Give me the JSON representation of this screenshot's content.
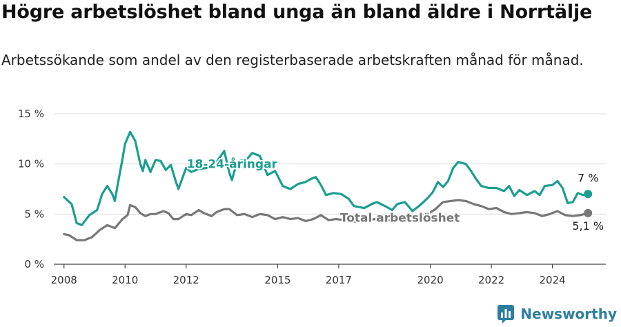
{
  "header": {
    "title": "Högre arbetslöshet bland unga än bland äldre i Norrtälje",
    "subtitle": "Arbetssökande som andel av den registerbaserade arbetskraften månad för månad."
  },
  "brand": {
    "name": "Newsworthy",
    "icon": "newsworthy-logo-icon",
    "color": "#2d7fa0"
  },
  "chart_data": {
    "type": "line",
    "title": "Högre arbetslöshet bland unga än bland äldre i Norrtälje",
    "subtitle": "Arbetssökande som andel av den registerbaserade arbetskraften månad för månad.",
    "ylim": [
      0,
      15
    ],
    "y_ticks": [
      {
        "value": 0,
        "label": "0 %"
      },
      {
        "value": 5,
        "label": "5 %"
      },
      {
        "value": 10,
        "label": "10 %"
      },
      {
        "value": 15,
        "label": "15 %"
      }
    ],
    "xlim": [
      "2007-09",
      "2025-10"
    ],
    "x_ticks": [
      {
        "value": "2008-01",
        "label": "2008"
      },
      {
        "value": "2010-01",
        "label": "2010"
      },
      {
        "value": "2012-01",
        "label": "2012"
      },
      {
        "value": "2015-01",
        "label": "2015"
      },
      {
        "value": "2017-01",
        "label": "2017"
      },
      {
        "value": "2020-01",
        "label": "2020"
      },
      {
        "value": "2022-01",
        "label": "2022"
      },
      {
        "value": "2024-01",
        "label": "2024"
      }
    ],
    "grid": true,
    "series": [
      {
        "name": "18-24-åringar",
        "color": "#1a9e8f",
        "end_label": "7 %",
        "points": [
          [
            "2008-01",
            6.7
          ],
          [
            "2008-04",
            6.0
          ],
          [
            "2008-06",
            4.1
          ],
          [
            "2008-08",
            3.9
          ],
          [
            "2008-11",
            4.9
          ],
          [
            "2009-02",
            5.4
          ],
          [
            "2009-04",
            7.0
          ],
          [
            "2009-06",
            7.8
          ],
          [
            "2009-08",
            7.0
          ],
          [
            "2009-09",
            6.3
          ],
          [
            "2009-10",
            7.8
          ],
          [
            "2009-12",
            10.5
          ],
          [
            "2010-01",
            12.0
          ],
          [
            "2010-03",
            13.2
          ],
          [
            "2010-05",
            12.3
          ],
          [
            "2010-07",
            10.0
          ],
          [
            "2010-08",
            9.3
          ],
          [
            "2010-09",
            10.4
          ],
          [
            "2010-11",
            9.2
          ],
          [
            "2011-01",
            10.4
          ],
          [
            "2011-03",
            10.3
          ],
          [
            "2011-05",
            9.4
          ],
          [
            "2011-07",
            9.9
          ],
          [
            "2011-09",
            8.2
          ],
          [
            "2011-10",
            7.5
          ],
          [
            "2012-01",
            9.6
          ],
          [
            "2012-03",
            9.2
          ],
          [
            "2012-06",
            9.5
          ],
          [
            "2012-09",
            9.6
          ],
          [
            "2013-01",
            10.2
          ],
          [
            "2013-04",
            11.3
          ],
          [
            "2013-06",
            9.1
          ],
          [
            "2013-07",
            8.4
          ],
          [
            "2013-09",
            10.2
          ],
          [
            "2014-01",
            10.5
          ],
          [
            "2014-03",
            11.1
          ],
          [
            "2014-06",
            10.8
          ],
          [
            "2014-09",
            8.9
          ],
          [
            "2014-12",
            9.3
          ],
          [
            "2015-03",
            7.8
          ],
          [
            "2015-06",
            7.5
          ],
          [
            "2015-09",
            8.0
          ],
          [
            "2015-12",
            8.2
          ],
          [
            "2016-02",
            8.5
          ],
          [
            "2016-04",
            8.7
          ],
          [
            "2016-06",
            7.9
          ],
          [
            "2016-08",
            6.9
          ],
          [
            "2016-11",
            7.1
          ],
          [
            "2017-02",
            7.0
          ],
          [
            "2017-05",
            6.5
          ],
          [
            "2017-07",
            5.8
          ],
          [
            "2017-11",
            5.6
          ],
          [
            "2018-02",
            6.0
          ],
          [
            "2018-04",
            6.2
          ],
          [
            "2018-08",
            5.7
          ],
          [
            "2018-10",
            5.4
          ],
          [
            "2018-12",
            6.0
          ],
          [
            "2019-03",
            6.2
          ],
          [
            "2019-06",
            5.3
          ],
          [
            "2019-09",
            5.9
          ],
          [
            "2019-12",
            6.6
          ],
          [
            "2020-02",
            7.2
          ],
          [
            "2020-04",
            8.2
          ],
          [
            "2020-06",
            7.7
          ],
          [
            "2020-08",
            8.3
          ],
          [
            "2020-10",
            9.6
          ],
          [
            "2020-12",
            10.2
          ],
          [
            "2021-03",
            10.0
          ],
          [
            "2021-05",
            9.3
          ],
          [
            "2021-07",
            8.5
          ],
          [
            "2021-09",
            7.8
          ],
          [
            "2021-12",
            7.6
          ],
          [
            "2022-03",
            7.6
          ],
          [
            "2022-06",
            7.3
          ],
          [
            "2022-08",
            7.8
          ],
          [
            "2022-10",
            6.8
          ],
          [
            "2022-12",
            7.4
          ],
          [
            "2023-03",
            6.9
          ],
          [
            "2023-06",
            7.3
          ],
          [
            "2023-08",
            6.9
          ],
          [
            "2023-10",
            7.8
          ],
          [
            "2024-01",
            7.9
          ],
          [
            "2024-03",
            8.3
          ],
          [
            "2024-05",
            7.6
          ],
          [
            "2024-07",
            6.1
          ],
          [
            "2024-09",
            6.2
          ],
          [
            "2024-11",
            7.1
          ],
          [
            "2025-01",
            6.9
          ],
          [
            "2025-03",
            7.0
          ]
        ]
      },
      {
        "name": "Total arbetslöshet",
        "color": "#777777",
        "end_label": "5,1 %",
        "points": [
          [
            "2008-01",
            3.0
          ],
          [
            "2008-03",
            2.9
          ],
          [
            "2008-06",
            2.4
          ],
          [
            "2008-09",
            2.4
          ],
          [
            "2008-12",
            2.7
          ],
          [
            "2009-03",
            3.4
          ],
          [
            "2009-06",
            3.9
          ],
          [
            "2009-09",
            3.6
          ],
          [
            "2009-12",
            4.5
          ],
          [
            "2010-02",
            4.9
          ],
          [
            "2010-03",
            5.9
          ],
          [
            "2010-05",
            5.7
          ],
          [
            "2010-07",
            5.1
          ],
          [
            "2010-09",
            4.8
          ],
          [
            "2010-11",
            5.0
          ],
          [
            "2011-01",
            5.0
          ],
          [
            "2011-04",
            5.3
          ],
          [
            "2011-06",
            5.1
          ],
          [
            "2011-08",
            4.5
          ],
          [
            "2011-10",
            4.5
          ],
          [
            "2012-01",
            5.0
          ],
          [
            "2012-03",
            4.9
          ],
          [
            "2012-06",
            5.4
          ],
          [
            "2012-08",
            5.1
          ],
          [
            "2012-11",
            4.8
          ],
          [
            "2013-01",
            5.2
          ],
          [
            "2013-04",
            5.5
          ],
          [
            "2013-06",
            5.5
          ],
          [
            "2013-09",
            4.9
          ],
          [
            "2013-12",
            5.0
          ],
          [
            "2014-03",
            4.7
          ],
          [
            "2014-06",
            5.0
          ],
          [
            "2014-09",
            4.9
          ],
          [
            "2014-12",
            4.5
          ],
          [
            "2015-03",
            4.7
          ],
          [
            "2015-06",
            4.5
          ],
          [
            "2015-09",
            4.6
          ],
          [
            "2015-12",
            4.3
          ],
          [
            "2016-03",
            4.5
          ],
          [
            "2016-06",
            4.9
          ],
          [
            "2016-09",
            4.4
          ],
          [
            "2016-12",
            4.5
          ],
          [
            "2017-03",
            4.4
          ],
          [
            "2017-06",
            4.3
          ],
          [
            "2017-09",
            4.2
          ],
          [
            "2017-12",
            4.3
          ],
          [
            "2018-03",
            4.5
          ],
          [
            "2018-06",
            4.3
          ],
          [
            "2018-09",
            4.4
          ],
          [
            "2018-12",
            4.5
          ],
          [
            "2019-03",
            4.6
          ],
          [
            "2019-06",
            4.4
          ],
          [
            "2019-09",
            4.8
          ],
          [
            "2019-12",
            5.0
          ],
          [
            "2020-03",
            5.5
          ],
          [
            "2020-06",
            6.2
          ],
          [
            "2020-09",
            6.3
          ],
          [
            "2020-12",
            6.4
          ],
          [
            "2021-03",
            6.3
          ],
          [
            "2021-06",
            6.0
          ],
          [
            "2021-09",
            5.8
          ],
          [
            "2021-12",
            5.5
          ],
          [
            "2022-03",
            5.6
          ],
          [
            "2022-06",
            5.2
          ],
          [
            "2022-09",
            5.0
          ],
          [
            "2022-12",
            5.1
          ],
          [
            "2023-03",
            5.2
          ],
          [
            "2023-06",
            5.1
          ],
          [
            "2023-09",
            4.8
          ],
          [
            "2023-12",
            5.0
          ],
          [
            "2024-03",
            5.3
          ],
          [
            "2024-06",
            4.9
          ],
          [
            "2024-09",
            4.8
          ],
          [
            "2024-12",
            4.9
          ],
          [
            "2025-03",
            5.1
          ]
        ]
      }
    ]
  }
}
